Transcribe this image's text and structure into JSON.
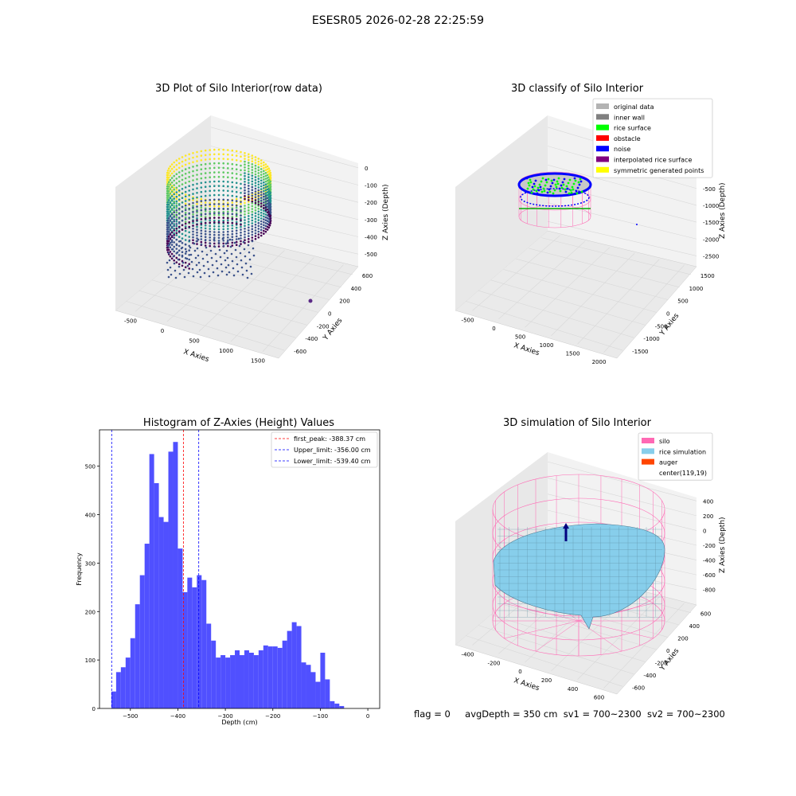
{
  "figure": {
    "suptitle": "ESESR05 2026-02-28 22:25:59"
  },
  "panel_raw": {
    "title": "3D Plot of Silo Interior(row data)",
    "xlabel": "X Axies",
    "ylabel": "Y Axies",
    "zlabel": "Z Axies (Depth)",
    "x_ticks": [
      "-500",
      "0",
      "500",
      "1000",
      "1500"
    ],
    "y_ticks": [
      "600",
      "400",
      "200",
      "0",
      "-200",
      "-400",
      "-600"
    ],
    "z_ticks": [
      "0",
      "-100",
      "-200",
      "-300",
      "-400",
      "-500"
    ]
  },
  "panel_classify": {
    "title": "3D classify of Silo Interior",
    "xlabel": "X Axies",
    "ylabel": "Y Axies",
    "zlabel": "Z Axies (Depth)",
    "x_ticks": [
      "-500",
      "0",
      "500",
      "1000",
      "1500",
      "2000"
    ],
    "y_ticks": [
      "1500",
      "1000",
      "500",
      "0",
      "-500",
      "-1000",
      "-1500"
    ],
    "z_ticks": [
      "0",
      "-500",
      "-1000",
      "-1500",
      "-2000",
      "-2500"
    ],
    "legend": [
      {
        "label": "original data",
        "color": "#b3b3b3"
      },
      {
        "label": "inner wall",
        "color": "#808080"
      },
      {
        "label": "rice surface",
        "color": "#00ff00"
      },
      {
        "label": "obstacle",
        "color": "#ff0000"
      },
      {
        "label": "noise",
        "color": "#0000ff"
      },
      {
        "label": "interpolated rice surface",
        "color": "#800080"
      },
      {
        "label": "symmetric generated points",
        "color": "#ffff00"
      }
    ]
  },
  "panel_hist": {
    "title": "Histogram of Z-Axies (Height) Values",
    "xlabel": "Depth (cm)",
    "ylabel": "Frequency",
    "legend": [
      {
        "label": "first_peak: -388.37 cm",
        "color": "#ff0000"
      },
      {
        "label": "Upper_limit: -356.00 cm",
        "color": "#0000ff"
      },
      {
        "label": "Lower_limit: -539.40 cm",
        "color": "#0000ff"
      }
    ]
  },
  "panel_sim": {
    "title": "3D simulation of Silo Interior",
    "xlabel": "X Axies",
    "ylabel": "Y Axies",
    "zlabel": "Z Axies (Depth)",
    "x_ticks": [
      "-400",
      "-200",
      "0",
      "200",
      "400",
      "600"
    ],
    "y_ticks": [
      "600",
      "400",
      "200",
      "0",
      "-200",
      "-400",
      "-600"
    ],
    "z_ticks": [
      "400",
      "200",
      "0",
      "-200",
      "-400",
      "-600",
      "-800"
    ],
    "legend": [
      {
        "label": "silo",
        "color": "#ff69b4"
      },
      {
        "label": "rice simulation",
        "color": "#87ceeb"
      },
      {
        "label": "auger",
        "color": "#ff4500"
      },
      {
        "label": "center(119,19)",
        "color": "#ffffff"
      }
    ]
  },
  "status": {
    "flag": "flag = 0",
    "avg": "avgDepth = 350 cm",
    "sv1": "sv1 = 700~2300",
    "sv2": "sv2 = 700~2300"
  },
  "chart_data": [
    {
      "type": "scatter",
      "title": "3D Plot of Silo Interior(row data)",
      "xlabel": "X Axies",
      "ylabel": "Y Axies",
      "zlabel": "Z Axies (Depth)",
      "xlim": [
        -650,
        1850
      ],
      "ylim": [
        -650,
        700
      ],
      "zlim": [
        -580,
        20
      ],
      "colormap": "viridis"
    },
    {
      "type": "scatter",
      "title": "3D classify of Silo Interior",
      "xlabel": "X Axies",
      "ylabel": "Y Axies",
      "zlabel": "Z Axies (Depth)",
      "xlim": [
        -800,
        2200
      ],
      "ylim": [
        -1600,
        1700
      ],
      "zlim": [
        -2700,
        100
      ]
    },
    {
      "type": "bar",
      "title": "Histogram of Z-Axies (Height) Values",
      "xlabel": "Depth (cm)",
      "ylabel": "Frequency",
      "xlim": [
        -565,
        25
      ],
      "ylim": [
        0,
        575
      ],
      "x_ticks": [
        -500,
        -400,
        -300,
        -200,
        -100,
        0
      ],
      "y_ticks": [
        0,
        100,
        200,
        300,
        400,
        500
      ],
      "bin_start": -540,
      "bin_width": 10,
      "values": [
        35,
        75,
        85,
        105,
        145,
        215,
        275,
        340,
        525,
        465,
        395,
        385,
        530,
        550,
        330,
        240,
        270,
        250,
        275,
        265,
        175,
        140,
        105,
        110,
        105,
        110,
        120,
        110,
        120,
        115,
        110,
        120,
        130,
        128,
        128,
        125,
        140,
        160,
        178,
        170,
        95,
        90,
        75,
        55,
        115,
        60,
        15,
        10,
        5
      ],
      "vlines": [
        {
          "x": -388.37,
          "color": "#ff0000",
          "name": "first_peak: -388.37 cm"
        },
        {
          "x": -356.0,
          "color": "#0000ff",
          "name": "Upper_limit: -356.00 cm"
        },
        {
          "x": -539.4,
          "color": "#0000ff",
          "name": "Lower_limit: -539.40 cm"
        }
      ],
      "legend_position": "top-right",
      "bar_color": "#5050ff"
    },
    {
      "type": "area",
      "title": "3D simulation of Silo Interior",
      "xlabel": "X Axies",
      "ylabel": "Y Axies",
      "zlabel": "Z Axies (Depth)",
      "xlim": [
        -500,
        700
      ],
      "ylim": [
        -650,
        650
      ],
      "zlim": [
        -900,
        450
      ]
    }
  ]
}
